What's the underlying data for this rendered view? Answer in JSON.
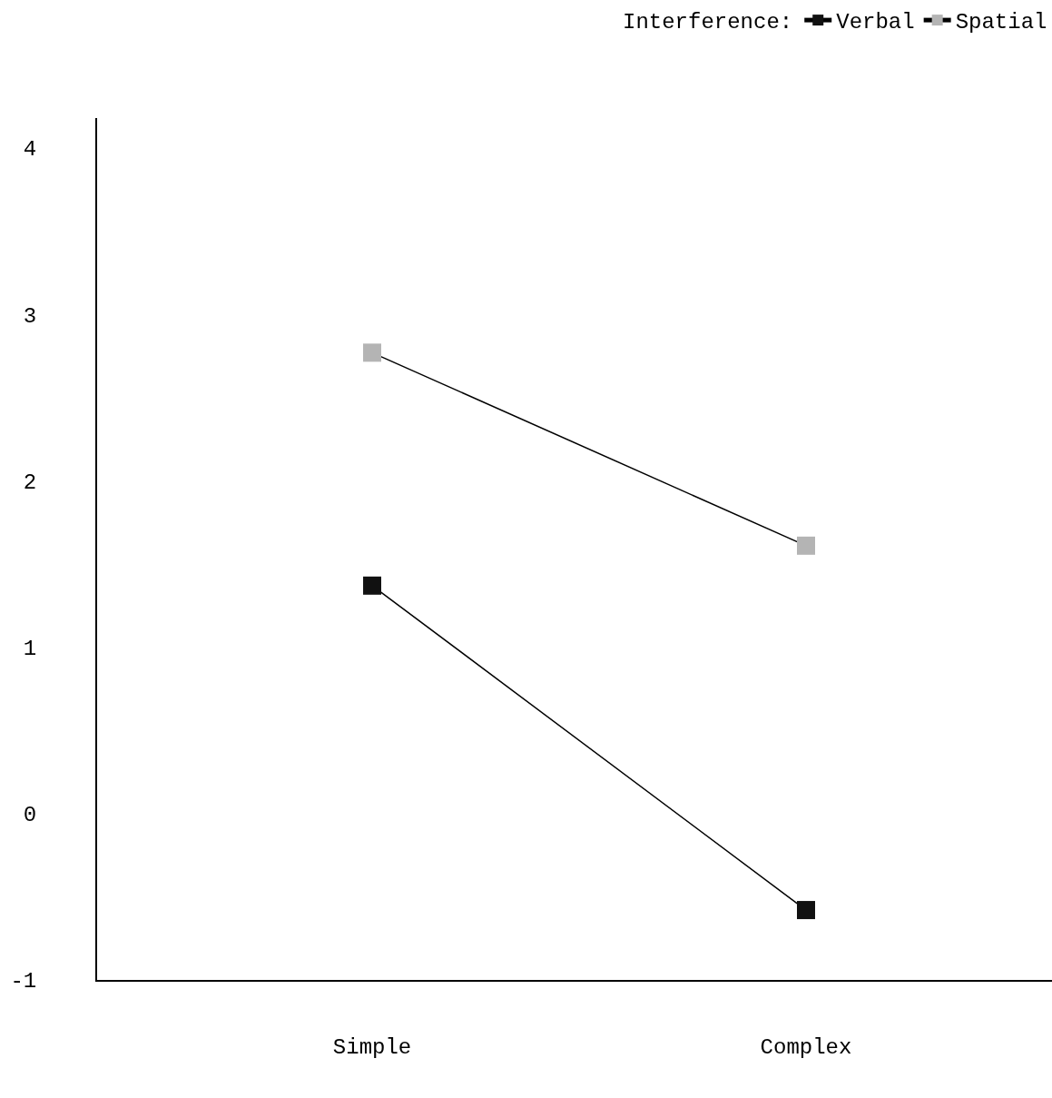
{
  "chart_data": {
    "type": "line",
    "legend_title": "Interference:",
    "categories": [
      "Simple",
      "Complex"
    ],
    "series": [
      {
        "name": "Verbal",
        "color": "#111111",
        "values": [
          1.37,
          -0.58
        ]
      },
      {
        "name": "Spatial",
        "color": "#b4b4b4",
        "values": [
          2.77,
          1.61
        ]
      }
    ],
    "ylim": [
      -1,
      4.18
    ],
    "yticks": [
      -1,
      0,
      1,
      2,
      3,
      4
    ],
    "grid": false,
    "legend": "top right",
    "marker": "square",
    "line_style": "solid"
  }
}
